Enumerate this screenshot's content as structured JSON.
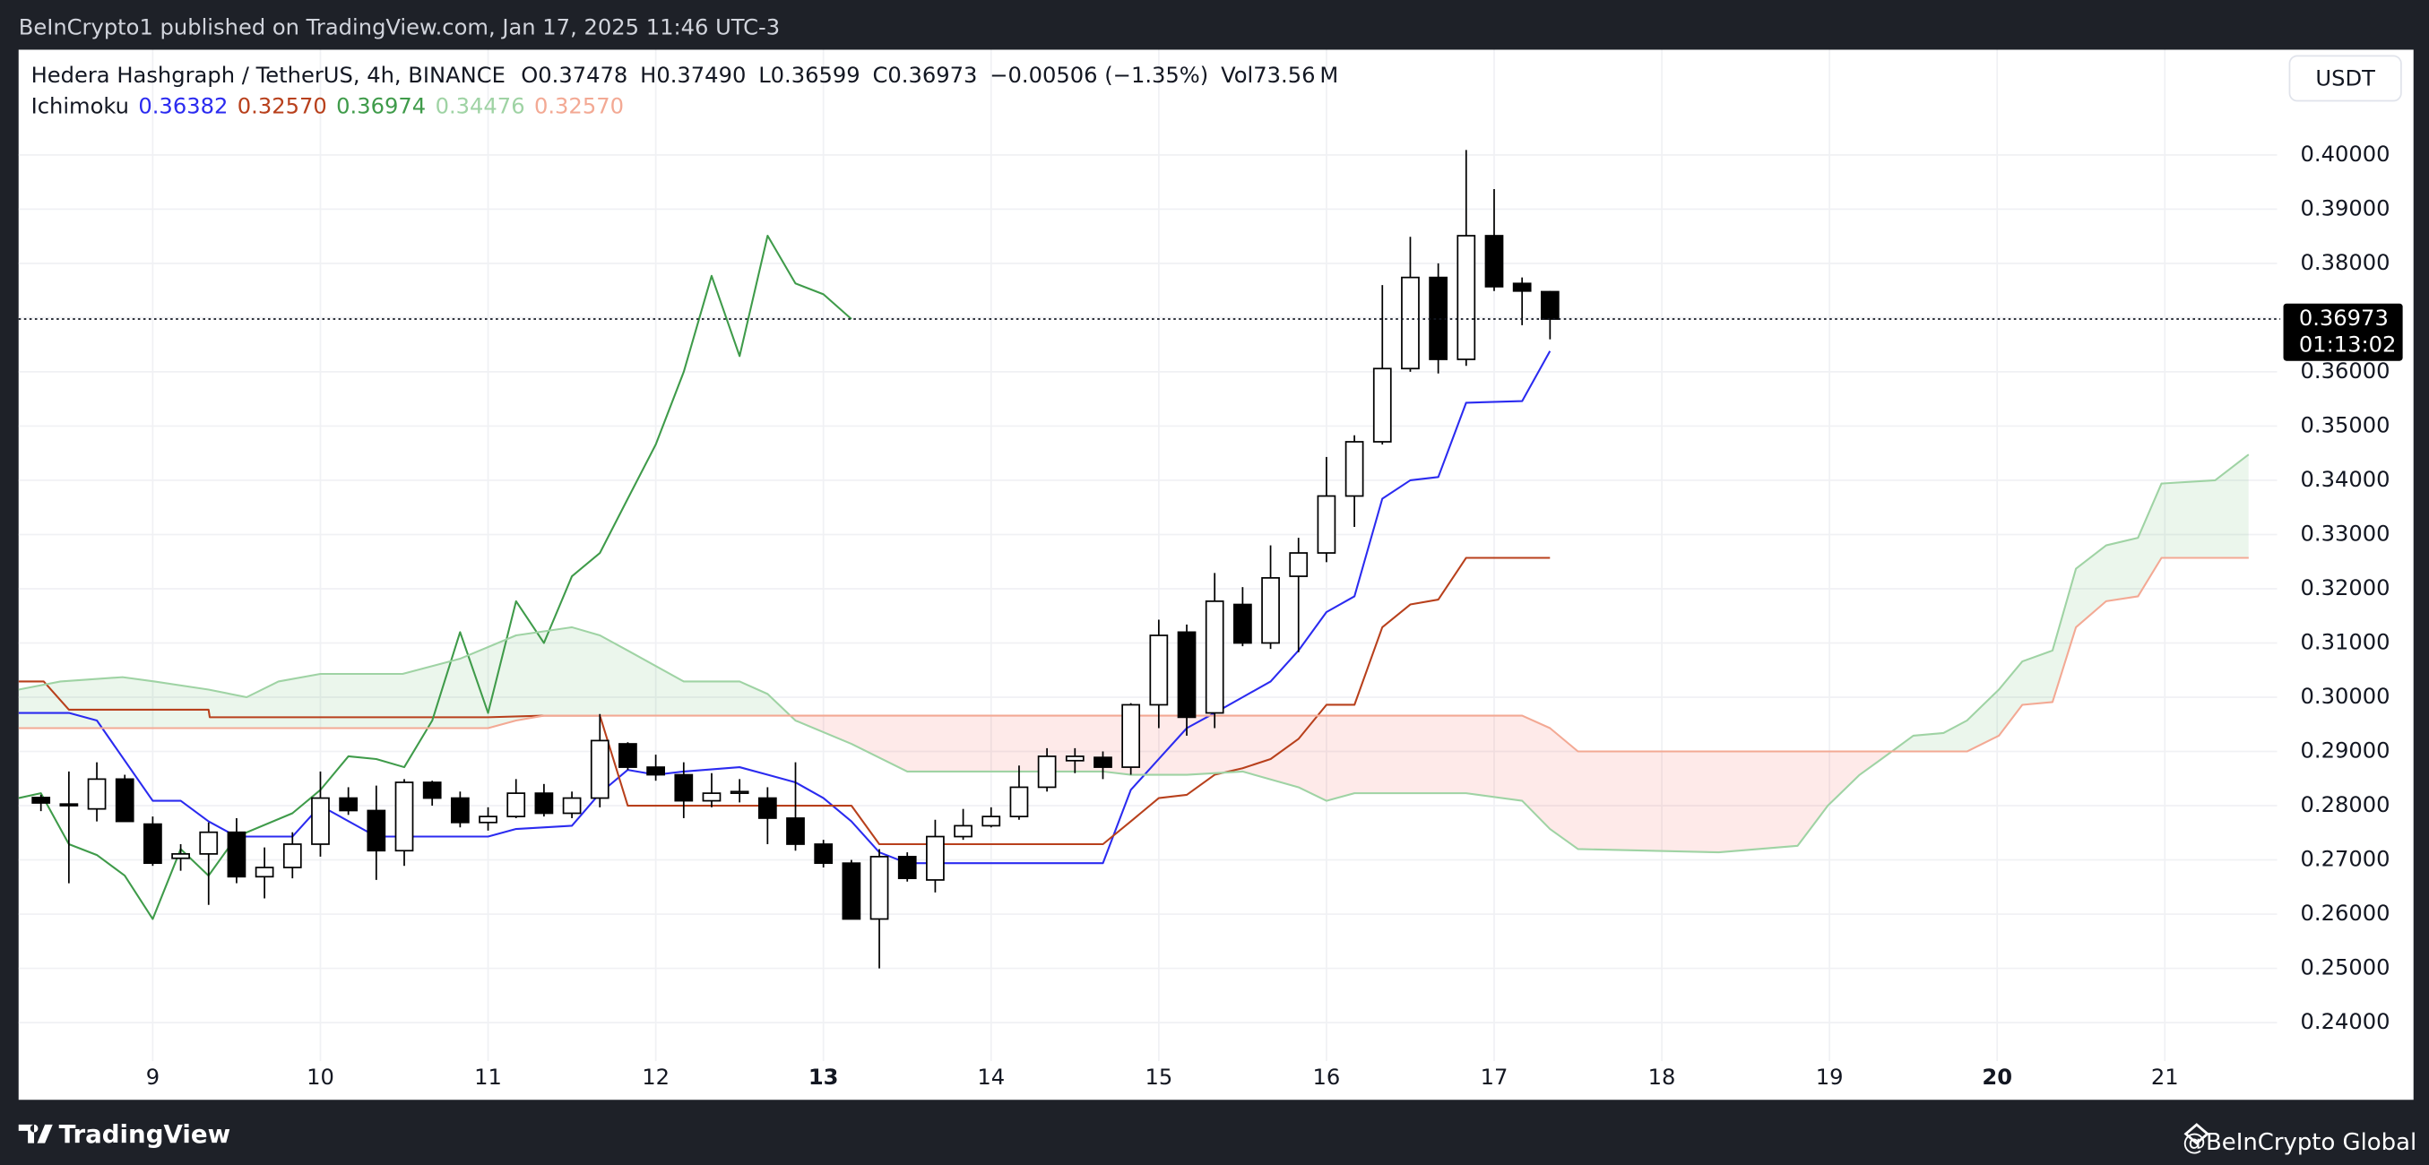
{
  "publish_note": "BeInCrypto1 published on TradingView.com, Jan 17, 2025 11:46 UTC-3",
  "legend": {
    "symbol": "Hedera Hashgraph / TetherUS, 4h, BINANCE",
    "fields": [
      [
        "O",
        "0.37478"
      ],
      [
        "H",
        "0.37490"
      ],
      [
        "L",
        "0.36599"
      ],
      [
        "C",
        "0.36973"
      ]
    ],
    "change": "−0.00506 (−1.35%)",
    "volume": [
      "Vol",
      "73.56 M"
    ]
  },
  "currency_button": "USDT",
  "footer": {
    "logo": "TradingView",
    "credit": "@BeInCrypto Global"
  },
  "chart_data": {
    "type": "candlestick",
    "indicator_name": "Ichimoku",
    "x": [
      8.3333,
      8.5,
      8.6667,
      8.8333,
      9,
      9.1667,
      9.3333,
      9.5,
      9.6667,
      9.8333,
      10,
      10.1667,
      10.3333,
      10.5,
      10.6667,
      10.8333,
      11,
      11.1667,
      11.3333,
      11.5,
      11.6667,
      11.8333,
      12,
      12.1667,
      12.3333,
      12.5,
      12.6667,
      12.8333,
      13,
      13.1667,
      13.3333,
      13.5,
      13.6667,
      13.8333,
      14,
      14.1667,
      14.3333,
      14.5,
      14.6667,
      14.8333,
      15,
      15.1667,
      15.3333,
      15.5,
      15.6667,
      15.8333,
      16,
      16.1667,
      16.3333,
      16.5,
      16.6667,
      16.8333,
      17,
      17.1667,
      17.3333
    ],
    "open": [
      0.2815,
      0.2803,
      0.2794,
      0.2849,
      0.2766,
      0.2703,
      0.2711,
      0.2751,
      0.2669,
      0.2686,
      0.2729,
      0.2814,
      0.2791,
      0.2717,
      0.2843,
      0.2814,
      0.2769,
      0.278,
      0.2823,
      0.2786,
      0.2814,
      0.2914,
      0.2871,
      0.2857,
      0.2809,
      0.2823,
      0.2814,
      0.2777,
      0.2729,
      0.2694,
      0.2591,
      0.2706,
      0.2663,
      0.2743,
      0.2763,
      0.278,
      0.2834,
      0.2883,
      0.2889,
      0.2871,
      0.2986,
      0.312,
      0.2971,
      0.3171,
      0.31,
      0.3223,
      0.3266,
      0.3371,
      0.3471,
      0.3606,
      0.3774,
      0.3623,
      0.3851,
      0.3763,
      0.37478
    ],
    "high": [
      0.282,
      0.2863,
      0.288,
      0.2857,
      0.278,
      0.2729,
      0.2769,
      0.2777,
      0.2723,
      0.2751,
      0.2863,
      0.2834,
      0.2837,
      0.2849,
      0.2846,
      0.2826,
      0.2797,
      0.2849,
      0.284,
      0.2826,
      0.2969,
      0.2917,
      0.2894,
      0.288,
      0.286,
      0.2849,
      0.2834,
      0.288,
      0.2737,
      0.27,
      0.272,
      0.2714,
      0.2774,
      0.2794,
      0.2797,
      0.2874,
      0.2906,
      0.2906,
      0.29,
      0.2989,
      0.3143,
      0.3134,
      0.3229,
      0.3203,
      0.328,
      0.3294,
      0.3443,
      0.3483,
      0.376,
      0.3849,
      0.38,
      0.4009,
      0.3937,
      0.3774,
      0.3749
    ],
    "low": [
      0.279,
      0.2657,
      0.2771,
      0.2771,
      0.2689,
      0.268,
      0.2617,
      0.2657,
      0.2629,
      0.2666,
      0.2706,
      0.2783,
      0.2663,
      0.2689,
      0.28,
      0.276,
      0.2754,
      0.2777,
      0.278,
      0.2777,
      0.2797,
      0.2866,
      0.2846,
      0.2777,
      0.2797,
      0.2806,
      0.2729,
      0.2717,
      0.2686,
      0.2591,
      0.25,
      0.266,
      0.264,
      0.2737,
      0.276,
      0.2774,
      0.2826,
      0.286,
      0.2849,
      0.2857,
      0.2943,
      0.2929,
      0.2943,
      0.3094,
      0.3089,
      0.3083,
      0.3249,
      0.3314,
      0.3466,
      0.36,
      0.3597,
      0.3611,
      0.3749,
      0.3686,
      0.36599
    ],
    "close": [
      0.2805,
      0.28,
      0.2849,
      0.2771,
      0.2694,
      0.2711,
      0.2751,
      0.2669,
      0.2686,
      0.2729,
      0.2814,
      0.2791,
      0.2717,
      0.2843,
      0.2814,
      0.2769,
      0.278,
      0.2823,
      0.2786,
      0.2814,
      0.292,
      0.2871,
      0.2857,
      0.2809,
      0.2823,
      0.2826,
      0.2777,
      0.2729,
      0.2694,
      0.2591,
      0.2706,
      0.2666,
      0.2743,
      0.2763,
      0.278,
      0.2834,
      0.2891,
      0.2891,
      0.2871,
      0.2986,
      0.3114,
      0.2963,
      0.3177,
      0.31,
      0.322,
      0.3266,
      0.3371,
      0.3471,
      0.3606,
      0.3774,
      0.3623,
      0.3851,
      0.3757,
      0.3749,
      0.36973
    ],
    "up_color": "#ffffff",
    "down_color": "#000000",
    "indicators": [
      {
        "color": "#2b2bf0",
        "legend_value": "0.36382",
        "x": [
          8.2,
          8.5,
          8.667,
          9,
          9.167,
          9.333,
          9.5,
          9.833,
          10,
          10.333,
          11,
          11.167,
          11.5,
          11.667,
          11.833,
          12,
          12.167,
          12.5,
          12.667,
          12.833,
          13,
          13.167,
          13.333,
          13.5,
          14.667,
          14.833,
          15,
          15.167,
          15.333,
          15.5,
          15.667,
          15.833,
          16,
          16.167,
          16.333,
          16.5,
          16.667,
          16.833,
          17.167,
          17.333
        ],
        "values": [
          0.2971,
          0.2971,
          0.2957,
          0.2809,
          0.2809,
          0.2771,
          0.2743,
          0.2743,
          0.28,
          0.2743,
          0.2743,
          0.2757,
          0.2763,
          0.2823,
          0.2866,
          0.2857,
          0.2863,
          0.2871,
          0.2857,
          0.2843,
          0.2814,
          0.2771,
          0.2714,
          0.2694,
          0.2694,
          0.2829,
          0.2886,
          0.2943,
          0.2971,
          0.3,
          0.3029,
          0.3086,
          0.3157,
          0.3186,
          0.3366,
          0.34,
          0.3406,
          0.3543,
          0.3546,
          0.36382
        ]
      },
      {
        "color": "#b8401c",
        "legend_value": "0.32570",
        "x": [
          8.2,
          8.35,
          8.5,
          9.333,
          9.34,
          11,
          11.333,
          11.667,
          11.833,
          13.167,
          13.333,
          14.667,
          14.833,
          15,
          15.167,
          15.333,
          15.5,
          15.667,
          15.833,
          16,
          16.167,
          16.333,
          16.5,
          16.667,
          16.833,
          17.333
        ],
        "values": [
          0.3029,
          0.3029,
          0.2977,
          0.2977,
          0.2963,
          0.2963,
          0.2966,
          0.2966,
          0.28,
          0.28,
          0.2729,
          0.2729,
          0.2771,
          0.2814,
          0.282,
          0.2857,
          0.2869,
          0.2886,
          0.2923,
          0.2986,
          0.2986,
          0.3129,
          0.3171,
          0.318,
          0.3257,
          0.3257
        ]
      },
      {
        "color": "#3f9b4a",
        "legend_value": "0.36974",
        "x": [
          8.2,
          8.333,
          8.5,
          8.667,
          8.833,
          9,
          9.167,
          9.333,
          9.5,
          9.833,
          10,
          10.167,
          10.333,
          10.5,
          10.667,
          10.833,
          11,
          11.167,
          11.333,
          11.5,
          11.667,
          11.833,
          12,
          12.167,
          12.333,
          12.5,
          12.667,
          12.833,
          13,
          13.167
        ],
        "values": [
          0.2814,
          0.2823,
          0.2729,
          0.2709,
          0.2671,
          0.2591,
          0.272,
          0.2671,
          0.2743,
          0.2786,
          0.2829,
          0.2891,
          0.2886,
          0.2871,
          0.2957,
          0.312,
          0.2971,
          0.3177,
          0.31,
          0.3223,
          0.3266,
          0.3366,
          0.3466,
          0.36,
          0.3777,
          0.3629,
          0.3851,
          0.3763,
          0.3743,
          0.36974
        ]
      },
      {
        "color": "#9fd3a4",
        "legend_value": "0.34476",
        "cloud_color": "rgba(76,175,80,0.11)",
        "x": [
          8.2,
          8.45,
          8.82,
          9.01,
          9.333,
          9.56,
          9.75,
          10,
          10.49,
          10.833,
          11.167,
          11.5,
          11.667,
          11.833,
          12.167,
          12.5,
          12.667,
          12.833,
          13.167,
          13.5,
          14.667,
          14.833,
          15.167,
          15.5,
          15.833,
          16,
          16.167,
          16.5,
          16.833,
          17.167,
          17.333,
          17.5,
          18.34,
          18.81,
          18.99,
          19.18,
          19.31,
          19.5,
          19.68,
          19.82,
          20.01,
          20.15,
          20.33,
          20.47,
          20.65,
          20.84,
          20.98,
          21.3,
          21.5
        ],
        "values": [
          0.3014,
          0.3029,
          0.3037,
          0.3029,
          0.3014,
          0.3,
          0.3029,
          0.3043,
          0.3043,
          0.3071,
          0.3114,
          0.3129,
          0.3114,
          0.3086,
          0.3029,
          0.3029,
          0.3006,
          0.2957,
          0.2914,
          0.2863,
          0.2863,
          0.2857,
          0.2857,
          0.2863,
          0.2834,
          0.2809,
          0.2823,
          0.2823,
          0.2823,
          0.2809,
          0.2757,
          0.272,
          0.2714,
          0.2726,
          0.28,
          0.2857,
          0.2886,
          0.2929,
          0.2934,
          0.2957,
          0.3014,
          0.3066,
          0.3086,
          0.3237,
          0.328,
          0.3294,
          0.3394,
          0.34,
          0.34476
        ]
      },
      {
        "color": "#f3a994",
        "legend_value": "0.32570",
        "cloud_color": "rgba(244,67,54,0.11)",
        "x": [
          8.2,
          9.333,
          11,
          11.167,
          11.333,
          17.167,
          17.333,
          17.5,
          19.82,
          20.01,
          20.15,
          20.33,
          20.47,
          20.65,
          20.84,
          20.98,
          21.5
        ],
        "values": [
          0.2943,
          0.2943,
          0.2943,
          0.2957,
          0.2966,
          0.2966,
          0.2943,
          0.29,
          0.29,
          0.2929,
          0.2986,
          0.2991,
          0.3129,
          0.3177,
          0.3186,
          0.3257,
          0.3257
        ]
      }
    ],
    "xlim": [
      8.2,
      21.67
    ],
    "xticks": [
      9,
      10,
      11,
      12,
      13,
      14,
      15,
      16,
      17,
      18,
      19,
      20,
      21
    ],
    "xticks_bold": [
      false,
      false,
      false,
      false,
      true,
      false,
      false,
      false,
      false,
      false,
      false,
      true,
      false
    ],
    "ylim": [
      0.2329,
      0.4194
    ],
    "yticks": [
      {
        "value": 0.24,
        "label": "0.24000"
      },
      {
        "value": 0.25,
        "label": "0.25000"
      },
      {
        "value": 0.26,
        "label": "0.26000"
      },
      {
        "value": 0.27,
        "label": "0.27000"
      },
      {
        "value": 0.28,
        "label": "0.28000"
      },
      {
        "value": 0.29,
        "label": "0.29000"
      },
      {
        "value": 0.3,
        "label": "0.30000"
      },
      {
        "value": 0.31,
        "label": "0.31000"
      },
      {
        "value": 0.32,
        "label": "0.32000"
      },
      {
        "value": 0.33,
        "label": "0.33000"
      },
      {
        "value": 0.34,
        "label": "0.34000"
      },
      {
        "value": 0.35,
        "label": "0.35000"
      },
      {
        "value": 0.36,
        "label": "0.36000"
      },
      {
        "value": 0.37,
        "label": "0.37000"
      },
      {
        "value": 0.38,
        "label": "0.38000"
      },
      {
        "value": 0.39,
        "label": "0.39000"
      },
      {
        "value": 0.4,
        "label": "0.40000"
      }
    ],
    "grid": true,
    "last_price": 0.36973,
    "countdown": "01:13:02"
  }
}
